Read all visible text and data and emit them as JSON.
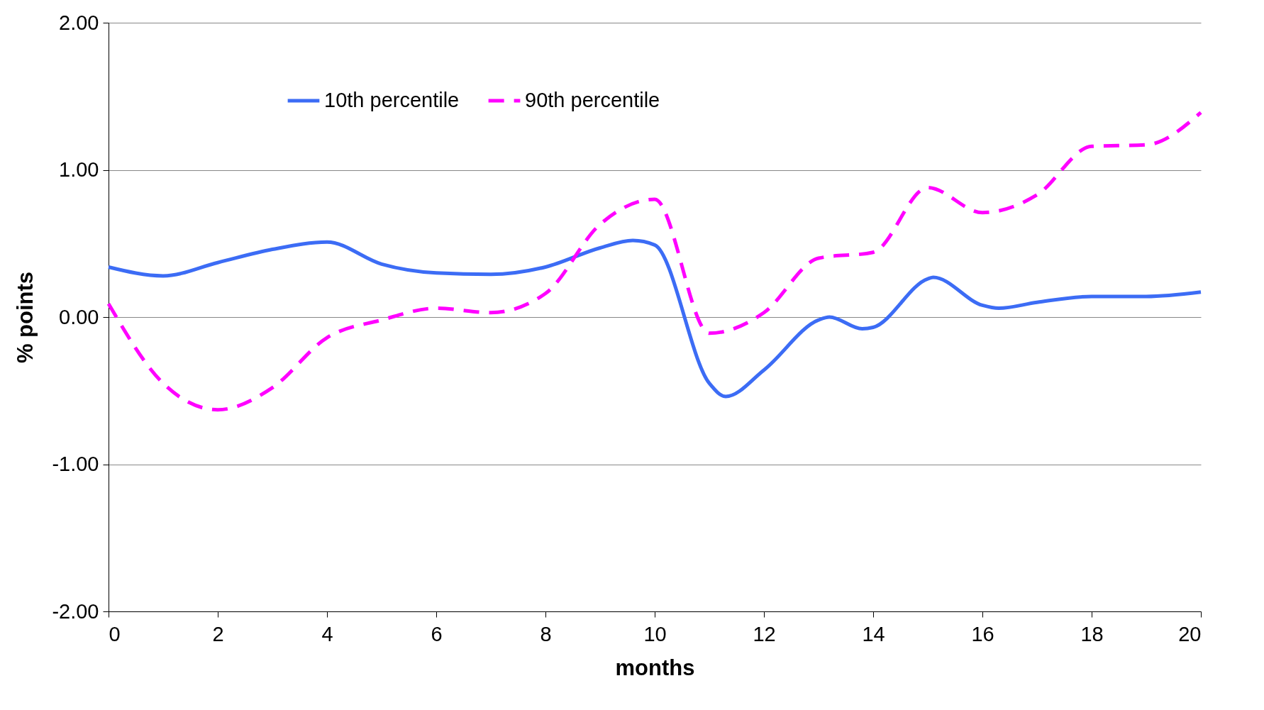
{
  "chart_data": {
    "type": "line",
    "xlabel": "months",
    "ylabel": "% points",
    "xlim": [
      0,
      20
    ],
    "xticks": [
      0,
      2,
      4,
      6,
      8,
      10,
      12,
      14,
      16,
      18,
      20
    ],
    "ylim": [
      -2,
      2
    ],
    "yticks": [
      {
        "value": -2,
        "label": "-2.00"
      },
      {
        "value": -1,
        "label": "-1.00"
      },
      {
        "value": 0,
        "label": "0.00"
      },
      {
        "value": 1,
        "label": "1.00"
      },
      {
        "value": 2,
        "label": "2.00"
      }
    ],
    "grid": "y",
    "legend": "top left",
    "series": [
      {
        "name": "10th percentile",
        "color": "#3c6cf5",
        "line_style": "solid",
        "x": [
          0,
          1,
          2,
          3,
          4,
          5,
          6,
          7,
          8,
          9,
          9.6,
          10,
          11,
          11.3,
          12,
          13,
          13.2,
          13.8,
          14,
          15,
          15.1,
          16,
          16.3,
          17,
          18,
          19,
          20
        ],
        "values": [
          0.34,
          0.28,
          0.37,
          0.46,
          0.51,
          0.36,
          0.3,
          0.29,
          0.34,
          0.47,
          0.52,
          0.49,
          -0.45,
          -0.54,
          -0.36,
          -0.02,
          0,
          -0.08,
          -0.07,
          0.26,
          0.27,
          0.08,
          0.06,
          0.1,
          0.14,
          0.14,
          0.17
        ]
      },
      {
        "name": "90th percentile",
        "color": "#ff00ff",
        "line_style": "dashed",
        "x": [
          0,
          1,
          2,
          3,
          4,
          5,
          6,
          7,
          8,
          9,
          10,
          11,
          12,
          13,
          14,
          15,
          16,
          17,
          18,
          19,
          20
        ],
        "values": [
          0.09,
          -0.45,
          -0.63,
          -0.48,
          -0.14,
          -0.02,
          0.06,
          0.03,
          0.16,
          0.63,
          0.8,
          -0.11,
          0.03,
          0.4,
          0.44,
          0.88,
          0.71,
          0.83,
          1.16,
          1.17,
          1.39
        ]
      }
    ]
  }
}
